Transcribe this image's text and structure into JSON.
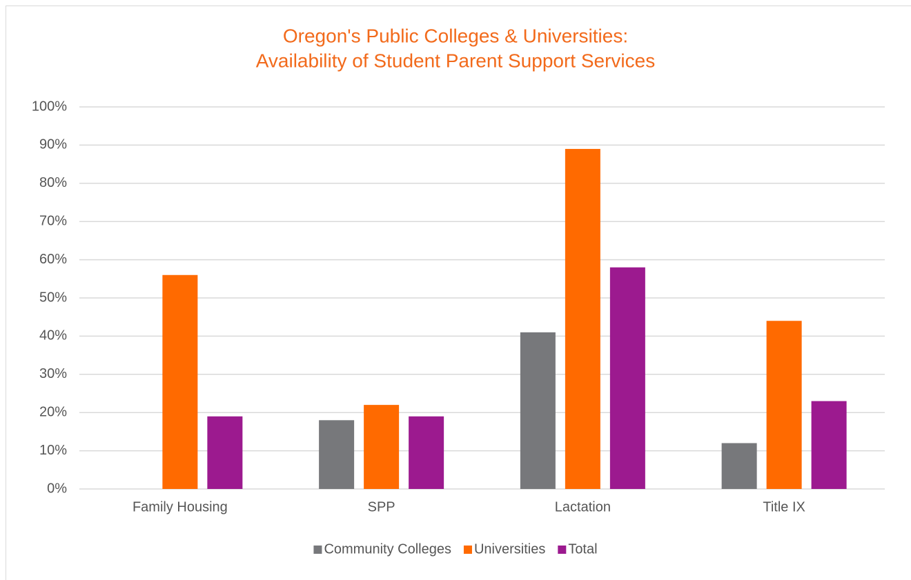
{
  "chart_data": {
    "type": "bar",
    "title": [
      "Oregon's Public Colleges & Universities:",
      "Availability of Student Parent Support Services"
    ],
    "categories": [
      "Family Housing",
      "SPP",
      "Lactation",
      "Title IX"
    ],
    "series": [
      {
        "name": "Community Colleges",
        "color": "#77787b",
        "values": [
          0,
          18,
          41,
          12
        ]
      },
      {
        "name": "Universities",
        "color": "#ff6a00",
        "values": [
          56,
          22,
          89,
          44
        ]
      },
      {
        "name": "Total",
        "color": "#9c1a8f",
        "values": [
          19,
          19,
          58,
          23
        ]
      }
    ],
    "ylim": [
      0,
      100
    ],
    "yticks": [
      {
        "value": 0,
        "label": "0%"
      },
      {
        "value": 10,
        "label": "10%"
      },
      {
        "value": 20,
        "label": "20%"
      },
      {
        "value": 30,
        "label": "30%"
      },
      {
        "value": 40,
        "label": "40%"
      },
      {
        "value": 50,
        "label": "50%"
      },
      {
        "value": 60,
        "label": "60%"
      },
      {
        "value": 70,
        "label": "70%"
      },
      {
        "value": 80,
        "label": "80%"
      },
      {
        "value": 90,
        "label": "90%"
      },
      {
        "value": 100,
        "label": "100%"
      }
    ],
    "grid": true,
    "legend": "bottom",
    "title_color": "#f26a1b"
  }
}
